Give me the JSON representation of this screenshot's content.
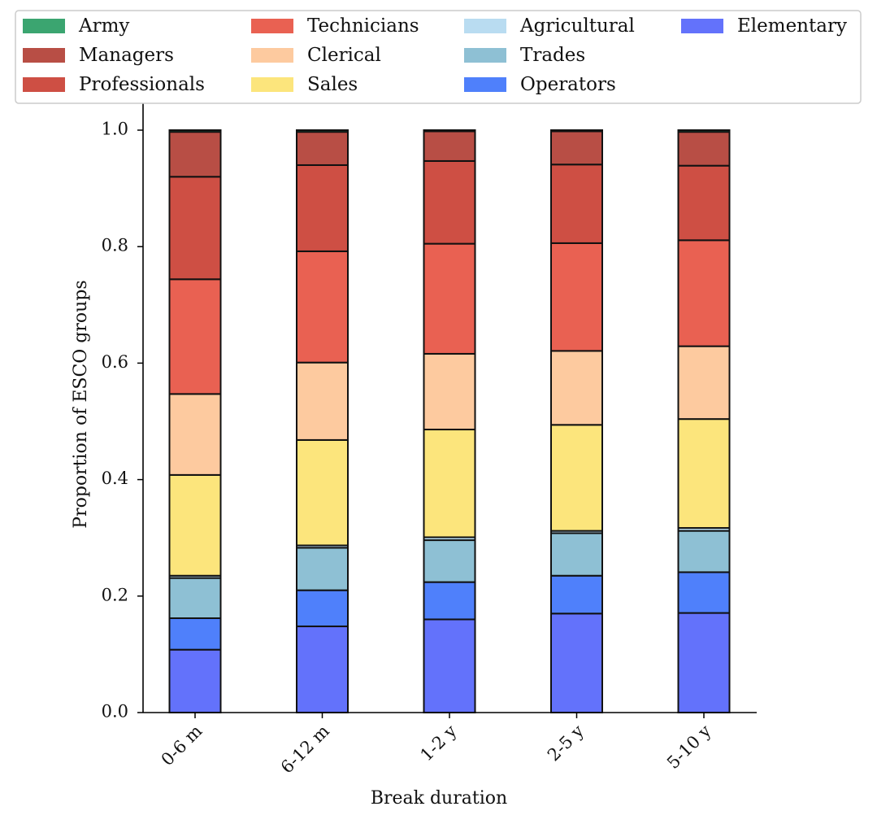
{
  "chart_data": {
    "type": "bar",
    "stacked": true,
    "title": "",
    "xlabel": "Break duration",
    "ylabel": "Proportion of ESCO groups",
    "ylim": [
      0,
      1.0
    ],
    "yticks": [
      "0.0",
      "0.2",
      "0.4",
      "0.6",
      "0.8",
      "1.0"
    ],
    "categories": [
      "0-6 m",
      "6-12 m",
      "1-2 y",
      "2-5 y",
      "5-10 y"
    ],
    "legend_position": "top",
    "series": [
      {
        "name": "Elementary",
        "color": "#6372fb",
        "values": [
          0.108,
          0.148,
          0.16,
          0.17,
          0.171
        ]
      },
      {
        "name": "Operators",
        "color": "#4f80fb",
        "values": [
          0.054,
          0.062,
          0.064,
          0.065,
          0.07
        ]
      },
      {
        "name": "Trades",
        "color": "#8ec0d4",
        "values": [
          0.069,
          0.073,
          0.072,
          0.073,
          0.071
        ]
      },
      {
        "name": "Agricultural",
        "color": "#b9dcf1",
        "values": [
          0.004,
          0.004,
          0.005,
          0.004,
          0.005
        ]
      },
      {
        "name": "Sales",
        "color": "#fce57c",
        "values": [
          0.173,
          0.181,
          0.185,
          0.182,
          0.187
        ]
      },
      {
        "name": "Clerical",
        "color": "#fdca9f",
        "values": [
          0.139,
          0.133,
          0.13,
          0.127,
          0.125
        ]
      },
      {
        "name": "Technicians",
        "color": "#e96152",
        "values": [
          0.197,
          0.191,
          0.189,
          0.185,
          0.182
        ]
      },
      {
        "name": "Professionals",
        "color": "#ce4f44",
        "values": [
          0.176,
          0.148,
          0.142,
          0.135,
          0.128
        ]
      },
      {
        "name": "Managers",
        "color": "#b84e45",
        "values": [
          0.077,
          0.057,
          0.051,
          0.057,
          0.058
        ]
      },
      {
        "name": "Army",
        "color": "#3ba570",
        "values": [
          0.003,
          0.003,
          0.002,
          0.002,
          0.003
        ]
      }
    ],
    "legend_order": [
      "Army",
      "Managers",
      "Professionals",
      "Technicians",
      "Clerical",
      "Sales",
      "Agricultural",
      "Trades",
      "Operators",
      "Elementary"
    ]
  }
}
